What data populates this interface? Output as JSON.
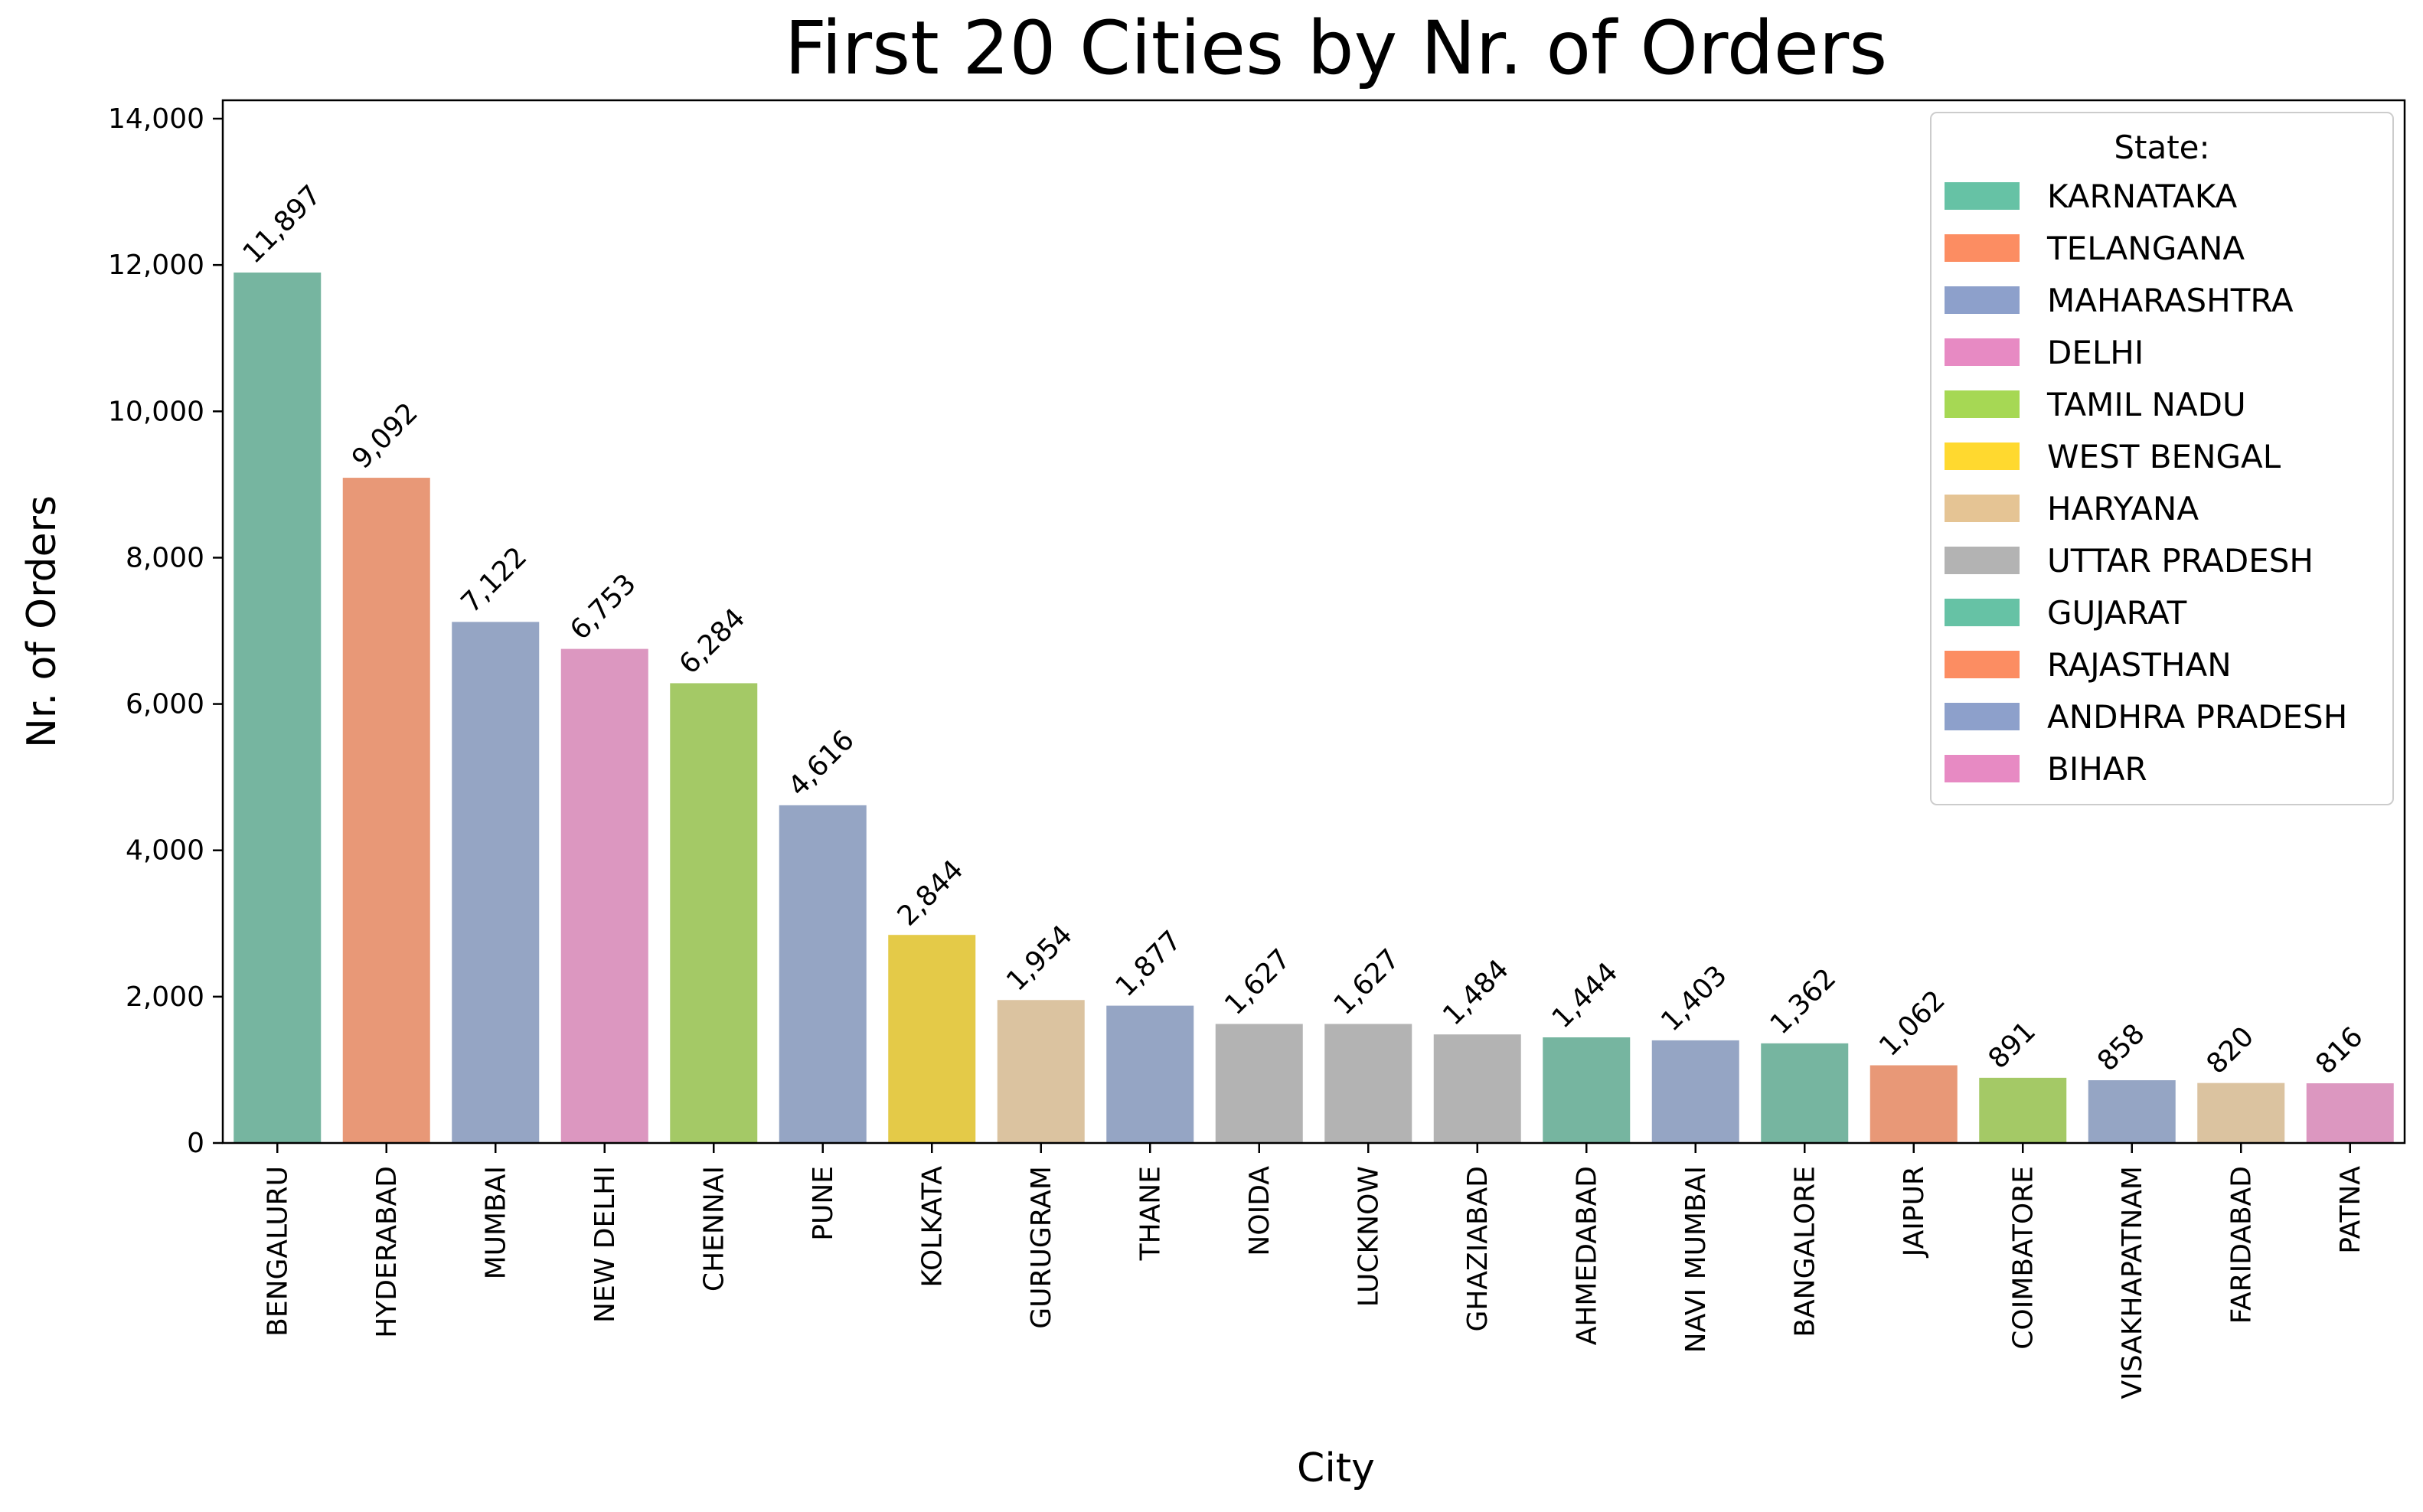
{
  "chart_data": {
    "type": "bar",
    "title": "First 20 Cities by Nr. of Orders",
    "xlabel": "City",
    "ylabel": "Nr. of Orders",
    "ylim": [
      0,
      14000
    ],
    "yticks": [
      "0",
      "2,000",
      "4,000",
      "6,000",
      "8,000",
      "10,000",
      "12,000",
      "14,000"
    ],
    "grid": false,
    "legend": {
      "title": "State:",
      "position": "top-right",
      "entries": [
        {
          "label": "KARNATAKA",
          "color": "#66c2a5"
        },
        {
          "label": "TELANGANA",
          "color": "#fc8d62"
        },
        {
          "label": "MAHARASHTRA",
          "color": "#8da0cb"
        },
        {
          "label": "DELHI",
          "color": "#e78ac3"
        },
        {
          "label": "TAMIL NADU",
          "color": "#a6d854"
        },
        {
          "label": "WEST BENGAL",
          "color": "#ffd92f"
        },
        {
          "label": "HARYANA",
          "color": "#e5c494"
        },
        {
          "label": "UTTAR PRADESH",
          "color": "#b3b3b3"
        },
        {
          "label": "GUJARAT",
          "color": "#66c2a5"
        },
        {
          "label": "RAJASTHAN",
          "color": "#fc8d62"
        },
        {
          "label": "ANDHRA PRADESH",
          "color": "#8da0cb"
        },
        {
          "label": "BIHAR",
          "color": "#e78ac3"
        }
      ]
    },
    "bars": [
      {
        "city": "BENGALURU",
        "value": 11897,
        "label": "11,897",
        "state": "KARNATAKA",
        "color": "#76b5a0"
      },
      {
        "city": "HYDERABAD",
        "value": 9092,
        "label": "9,092",
        "state": "TELANGANA",
        "color": "#e89877"
      },
      {
        "city": "MUMBAI",
        "value": 7122,
        "label": "7,122",
        "state": "MAHARASHTRA",
        "color": "#95a5c4"
      },
      {
        "city": "NEW DELHI",
        "value": 6753,
        "label": "6,753",
        "state": "DELHI",
        "color": "#dc97c0"
      },
      {
        "city": "CHENNAI",
        "value": 6284,
        "label": "6,284",
        "state": "TAMIL NADU",
        "color": "#a4c966"
      },
      {
        "city": "PUNE",
        "value": 4616,
        "label": "4,616",
        "state": "MAHARASHTRA",
        "color": "#95a5c4"
      },
      {
        "city": "KOLKATA",
        "value": 2844,
        "label": "2,844",
        "state": "WEST BENGAL",
        "color": "#e4ca48"
      },
      {
        "city": "GURUGRAM",
        "value": 1954,
        "label": "1,954",
        "state": "HARYANA",
        "color": "#dbc3a0"
      },
      {
        "city": "THANE",
        "value": 1877,
        "label": "1,877",
        "state": "MAHARASHTRA",
        "color": "#95a5c4"
      },
      {
        "city": "NOIDA",
        "value": 1627,
        "label": "1,627",
        "state": "UTTAR PRADESH",
        "color": "#b3b3b3"
      },
      {
        "city": "LUCKNOW",
        "value": 1627,
        "label": "1,627",
        "state": "UTTAR PRADESH",
        "color": "#b3b3b3"
      },
      {
        "city": "GHAZIABAD",
        "value": 1484,
        "label": "1,484",
        "state": "UTTAR PRADESH",
        "color": "#b3b3b3"
      },
      {
        "city": "AHMEDABAD",
        "value": 1444,
        "label": "1,444",
        "state": "GUJARAT",
        "color": "#76b5a0"
      },
      {
        "city": "NAVI MUMBAI",
        "value": 1403,
        "label": "1,403",
        "state": "MAHARASHTRA",
        "color": "#95a5c4"
      },
      {
        "city": "BANGALORE",
        "value": 1362,
        "label": "1,362",
        "state": "KARNATAKA",
        "color": "#76b5a0"
      },
      {
        "city": "JAIPUR",
        "value": 1062,
        "label": "1,062",
        "state": "RAJASTHAN",
        "color": "#e89877"
      },
      {
        "city": "COIMBATORE",
        "value": 891,
        "label": "891",
        "state": "TAMIL NADU",
        "color": "#a4c966"
      },
      {
        "city": "VISAKHAPATNAM",
        "value": 858,
        "label": "858",
        "state": "ANDHRA PRADESH",
        "color": "#95a5c4"
      },
      {
        "city": "FARIDABAD",
        "value": 820,
        "label": "820",
        "state": "HARYANA",
        "color": "#dbc3a0"
      },
      {
        "city": "PATNA",
        "value": 816,
        "label": "816",
        "state": "BIHAR",
        "color": "#dc97c0"
      }
    ]
  }
}
